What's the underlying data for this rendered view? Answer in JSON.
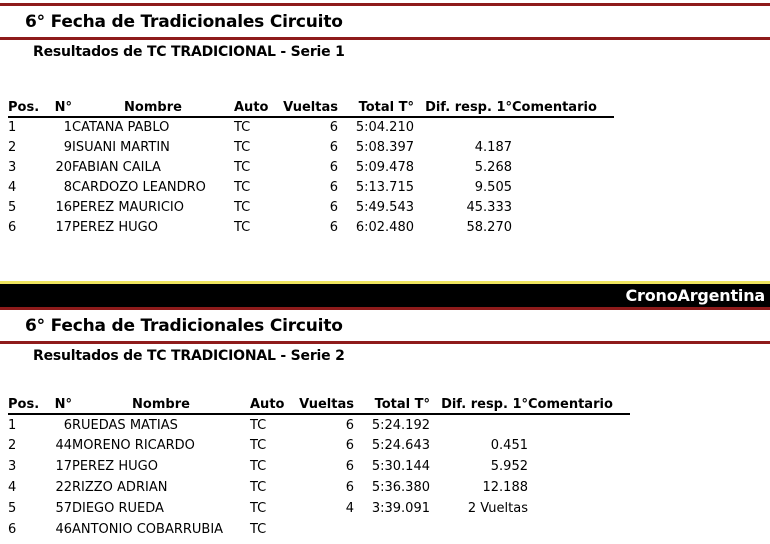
{
  "colors": {
    "maroon_rule": "#8e1b1b",
    "yellow_rule": "#efe55f",
    "banner_background": "#000000",
    "banner_text": "#ffffff",
    "body_text": "#000000"
  },
  "banner": {
    "brand": "CronoArgentina"
  },
  "sections": [
    {
      "id": "serie1",
      "title": "6° Fecha de Tradicionales Circuito",
      "subtitle": "Resultados de TC TRADICIONAL - Serie 1",
      "table": {
        "headers": [
          "Pos.",
          "N°",
          "Nombre",
          "Auto",
          "Vueltas",
          "Total T°",
          "Dif. resp. 1°",
          "Comentario"
        ],
        "rows": [
          [
            "1",
            "1",
            "CATANA PABLO",
            "TC",
            "6",
            "5:04.210",
            "",
            ""
          ],
          [
            "2",
            "9",
            "ISUANI MARTIN",
            "TC",
            "6",
            "5:08.397",
            "4.187",
            ""
          ],
          [
            "3",
            "20",
            "FABIAN CAILA",
            "TC",
            "6",
            "5:09.478",
            "5.268",
            ""
          ],
          [
            "4",
            "8",
            "CARDOZO LEANDRO",
            "TC",
            "6",
            "5:13.715",
            "9.505",
            ""
          ],
          [
            "5",
            "16",
            "PEREZ MAURICIO",
            "TC",
            "6",
            "5:49.543",
            "45.333",
            ""
          ],
          [
            "6",
            "17",
            "PEREZ HUGO",
            "TC",
            "6",
            "6:02.480",
            "58.270",
            ""
          ]
        ]
      }
    },
    {
      "id": "serie2",
      "title": "6° Fecha de Tradicionales Circuito",
      "subtitle": "Resultados de TC TRADICIONAL - Serie 2",
      "table": {
        "headers": [
          "Pos.",
          "N°",
          "Nombre",
          "Auto",
          "Vueltas",
          "Total T°",
          "Dif. resp. 1°",
          "Comentario"
        ],
        "rows": [
          [
            "1",
            "6",
            "RUEDAS MATIAS",
            "TC",
            "6",
            "5:24.192",
            "",
            ""
          ],
          [
            "2",
            "44",
            "MORENO RICARDO",
            "TC",
            "6",
            "5:24.643",
            "0.451",
            ""
          ],
          [
            "3",
            "17",
            "PEREZ HUGO",
            "TC",
            "6",
            "5:30.144",
            "5.952",
            ""
          ],
          [
            "4",
            "22",
            "RIZZO ADRIAN",
            "TC",
            "6",
            "5:36.380",
            "12.188",
            ""
          ],
          [
            "5",
            "57",
            "DIEGO RUEDA",
            "TC",
            "4",
            "3:39.091",
            "2 Vueltas",
            ""
          ],
          [
            "6",
            "46",
            "ANTONIO COBARRUBIA",
            "TC",
            "",
            "",
            "",
            ""
          ]
        ]
      }
    }
  ]
}
